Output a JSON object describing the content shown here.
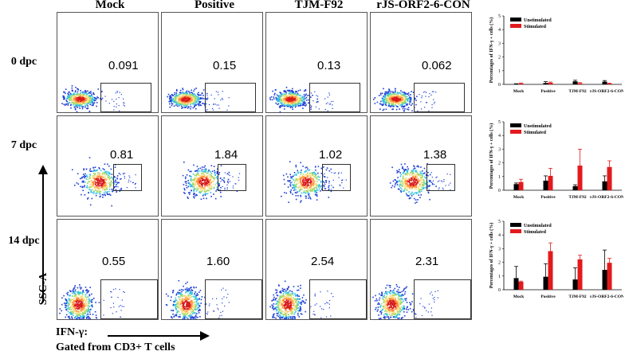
{
  "columns": [
    "Mock",
    "Positive",
    "TJM-F92",
    "rJS-ORF2-6-CON"
  ],
  "rows": [
    "0 dpc",
    "7 dpc",
    "14 dpc"
  ],
  "percentages": [
    [
      "0.091",
      "0.15",
      "0.13",
      "0.062"
    ],
    [
      "0.81",
      "1.84",
      "1.02",
      "1.38"
    ],
    [
      "0.55",
      "1.60",
      "2.54",
      "2.31"
    ]
  ],
  "y_axis_label": "SSC-A",
  "x_axis_label": "IFN-γ:",
  "gating_note": "Gated from CD3+ T cells",
  "colors": {
    "unstimulated": "#000000",
    "stimulated": "#e31a1c"
  },
  "chart_data": [
    {
      "type": "bar",
      "ylabel": "Percentages of IFN-γ + cells (%)",
      "ylim": [
        0,
        5
      ],
      "yticks": [
        0,
        1,
        2,
        3,
        4,
        5
      ],
      "legend_position": "top-left",
      "categories": [
        "Mock",
        "Positive",
        "TJM-F92",
        "rJS-ORF2-6-CON"
      ],
      "series": [
        {
          "name": "Unstimulated",
          "values": [
            0.03,
            0.1,
            0.22,
            0.2
          ],
          "errors": [
            0.02,
            0.1,
            0.08,
            0.08
          ]
        },
        {
          "name": "Stimulated",
          "values": [
            0.07,
            0.12,
            0.08,
            0.06
          ],
          "errors": [
            0.03,
            0.05,
            0.05,
            0.03
          ]
        }
      ]
    },
    {
      "type": "bar",
      "ylabel": "Percentages of IFN-γ + cells (%)",
      "ylim": [
        0,
        5
      ],
      "yticks": [
        0,
        1,
        2,
        3,
        4,
        5
      ],
      "legend_position": "top-left",
      "categories": [
        "Mock",
        "Positive",
        "TJM-F92",
        "rJS-ORF2-6-CON"
      ],
      "series": [
        {
          "name": "Unstimulated",
          "values": [
            0.45,
            0.7,
            0.3,
            0.65
          ],
          "errors": [
            0.08,
            0.35,
            0.1,
            0.4
          ]
        },
        {
          "name": "Stimulated",
          "values": [
            0.6,
            1.05,
            1.8,
            1.7
          ],
          "errors": [
            0.2,
            0.55,
            1.2,
            0.45
          ]
        }
      ]
    },
    {
      "type": "bar",
      "ylabel": "Percentages of IFN-γ + cells (%)",
      "ylim": [
        0,
        5
      ],
      "yticks": [
        0,
        1,
        2,
        3,
        4,
        5
      ],
      "legend_position": "top-left",
      "categories": [
        "Mock",
        "Positive",
        "TJM-F92",
        "rJS-ORF2-6-CON"
      ],
      "series": [
        {
          "name": "Unstimulated",
          "values": [
            0.85,
            0.95,
            0.75,
            1.45
          ],
          "errors": [
            0.85,
            0.95,
            0.85,
            1.45
          ]
        },
        {
          "name": "Stimulated",
          "values": [
            0.58,
            2.82,
            2.22,
            1.97
          ],
          "errors": [
            0.05,
            0.6,
            0.3,
            0.32
          ]
        }
      ]
    }
  ]
}
